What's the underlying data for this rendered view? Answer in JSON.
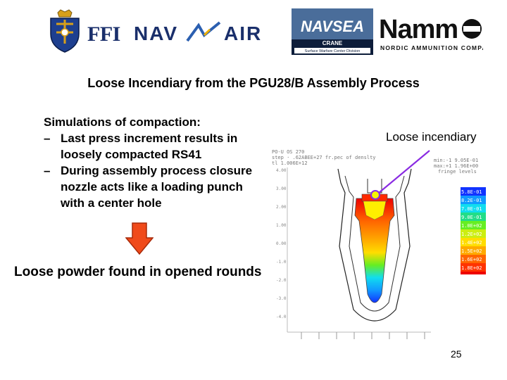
{
  "logos": {
    "ffi_text": "FFI",
    "navair_text": "NAV AIR",
    "navsea_text": "NAVSEA",
    "navsea_crane": "CRANE",
    "navsea_division": "Surface Warfare Center Division",
    "nammo_text": "Nammo",
    "nammo_tagline": "NORDIC AMMUNITION COMPANY"
  },
  "title": "Loose Incendiary from the PGU28/B Assembly Process",
  "bullets": {
    "heading": "Simulations of compaction:",
    "items": [
      {
        "dash": "–",
        "text": "Last press increment results in loosely compacted RS41"
      },
      {
        "dash": "–",
        "text": "During assembly process closure nozzle acts like a loading punch with a center hole"
      }
    ]
  },
  "conclusion": "Loose powder found in opened rounds",
  "callout": "Loose incendiary",
  "legend_colors": [
    "#1133ff",
    "#1199ff",
    "#11ddee",
    "#22dd88",
    "#66ee22",
    "#ccee11",
    "#ffdd00",
    "#ffaa00",
    "#ff6600",
    "#ff3300",
    "#ee0000"
  ],
  "colors": {
    "arrow": "#f04a1a",
    "callout_line": "#8a2be2",
    "title_text": "#000000"
  },
  "page_number": "25"
}
